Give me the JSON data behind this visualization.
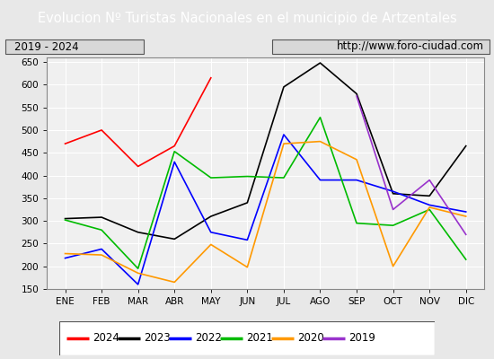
{
  "title": "Evolucion Nº Turistas Nacionales en el municipio de Artzentales",
  "subtitle_left": "2019 - 2024",
  "subtitle_right": "http://www.foro-ciudad.com",
  "x_labels": [
    "ENE",
    "FEB",
    "MAR",
    "ABR",
    "MAY",
    "JUN",
    "JUL",
    "AGO",
    "SEP",
    "OCT",
    "NOV",
    "DIC"
  ],
  "ylim": [
    150,
    660
  ],
  "yticks": [
    150,
    200,
    250,
    300,
    350,
    400,
    450,
    500,
    550,
    600,
    650
  ],
  "series": {
    "2024": {
      "color": "#ff0000",
      "data": [
        470,
        500,
        420,
        465,
        615,
        null,
        null,
        null,
        null,
        null,
        null,
        null
      ]
    },
    "2023": {
      "color": "#000000",
      "data": [
        305,
        308,
        275,
        260,
        310,
        340,
        595,
        648,
        580,
        360,
        355,
        465
      ]
    },
    "2022": {
      "color": "#0000ff",
      "data": [
        218,
        238,
        160,
        430,
        275,
        258,
        490,
        390,
        390,
        365,
        335,
        320
      ]
    },
    "2021": {
      "color": "#00bb00",
      "data": [
        302,
        280,
        195,
        453,
        395,
        398,
        395,
        528,
        295,
        290,
        325,
        215
      ]
    },
    "2020": {
      "color": "#ff9900",
      "data": [
        228,
        225,
        185,
        165,
        248,
        198,
        470,
        475,
        435,
        200,
        330,
        310
      ]
    },
    "2019": {
      "color": "#9933cc",
      "data": [
        null,
        null,
        null,
        null,
        null,
        null,
        null,
        null,
        575,
        325,
        390,
        270
      ]
    }
  },
  "title_fontsize": 10.5,
  "subtitle_fontsize": 8.5,
  "tick_fontsize": 7.5,
  "legend_fontsize": 8.5,
  "title_bg_color": "#4472c4",
  "title_text_color": "#ffffff",
  "plot_bg_color": "#f0f0f0",
  "grid_color": "#ffffff",
  "border_color": "#888888"
}
